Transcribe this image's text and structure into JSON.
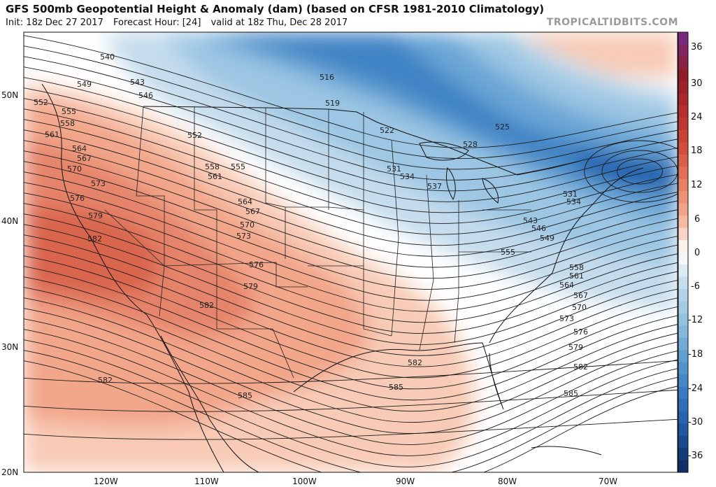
{
  "header": {
    "title": "GFS 500mb Geopotential Height & Anomaly (dam) (based on CFSR 1981-2010 Climatology)",
    "init": "Init: 18z Dec 27 2017",
    "forecast": "Forecast Hour: [24]",
    "valid": "valid at 18z Thu, Dec 28 2017",
    "watermark": "TROPICALTIDBITS.COM"
  },
  "axes": {
    "lat_labels": [
      "50N",
      "40N",
      "30N",
      "20N"
    ],
    "lon_labels": [
      "120W",
      "110W",
      "100W",
      "90W",
      "80W",
      "70W"
    ]
  },
  "colorbar": {
    "labels": [
      "36",
      "30",
      "24",
      "18",
      "12",
      "6",
      "0",
      "-6",
      "-12",
      "-18",
      "-24",
      "-30",
      "-36"
    ],
    "colors": {
      "pos_36": "#7a2a7e",
      "pos_30": "#8e1e2a",
      "pos_24": "#b22c2c",
      "pos_18": "#cf4a3a",
      "pos_12": "#e57b60",
      "pos_6": "#f3ae93",
      "zero": "#ffffff",
      "neg_6": "#bcd8ea",
      "neg_12": "#8ec0df",
      "neg_18": "#5d9ccf",
      "neg_24": "#3679bf",
      "neg_30": "#1f56a0",
      "neg_36": "#0f2f66"
    }
  },
  "contour_labels": [
    {
      "name": "contour-label-540",
      "text": "540"
    },
    {
      "name": "contour-label-543",
      "text": "543"
    },
    {
      "name": "contour-label-546",
      "text": "546"
    },
    {
      "name": "contour-label-549",
      "text": "549"
    },
    {
      "name": "contour-label-552",
      "text": "552"
    },
    {
      "name": "contour-label-555",
      "text": "555"
    },
    {
      "name": "contour-label-558",
      "text": "558"
    },
    {
      "name": "contour-label-561",
      "text": "561"
    },
    {
      "name": "contour-label-564",
      "text": "564"
    },
    {
      "name": "contour-label-567",
      "text": "567"
    },
    {
      "name": "contour-label-570",
      "text": "570"
    },
    {
      "name": "contour-label-573",
      "text": "573"
    },
    {
      "name": "contour-label-576",
      "text": "576"
    },
    {
      "name": "contour-label-579",
      "text": "579"
    },
    {
      "name": "contour-label-582",
      "text": "582"
    },
    {
      "name": "contour-label-585",
      "text": "585"
    },
    {
      "name": "contour-label-516",
      "text": "516"
    },
    {
      "name": "contour-label-519",
      "text": "519"
    },
    {
      "name": "contour-label-522",
      "text": "522"
    },
    {
      "name": "contour-label-525",
      "text": "525"
    },
    {
      "name": "contour-label-528",
      "text": "528"
    },
    {
      "name": "contour-label-531",
      "text": "531"
    },
    {
      "name": "contour-label-534",
      "text": "534"
    },
    {
      "name": "contour-label-537",
      "text": "537"
    }
  ]
}
